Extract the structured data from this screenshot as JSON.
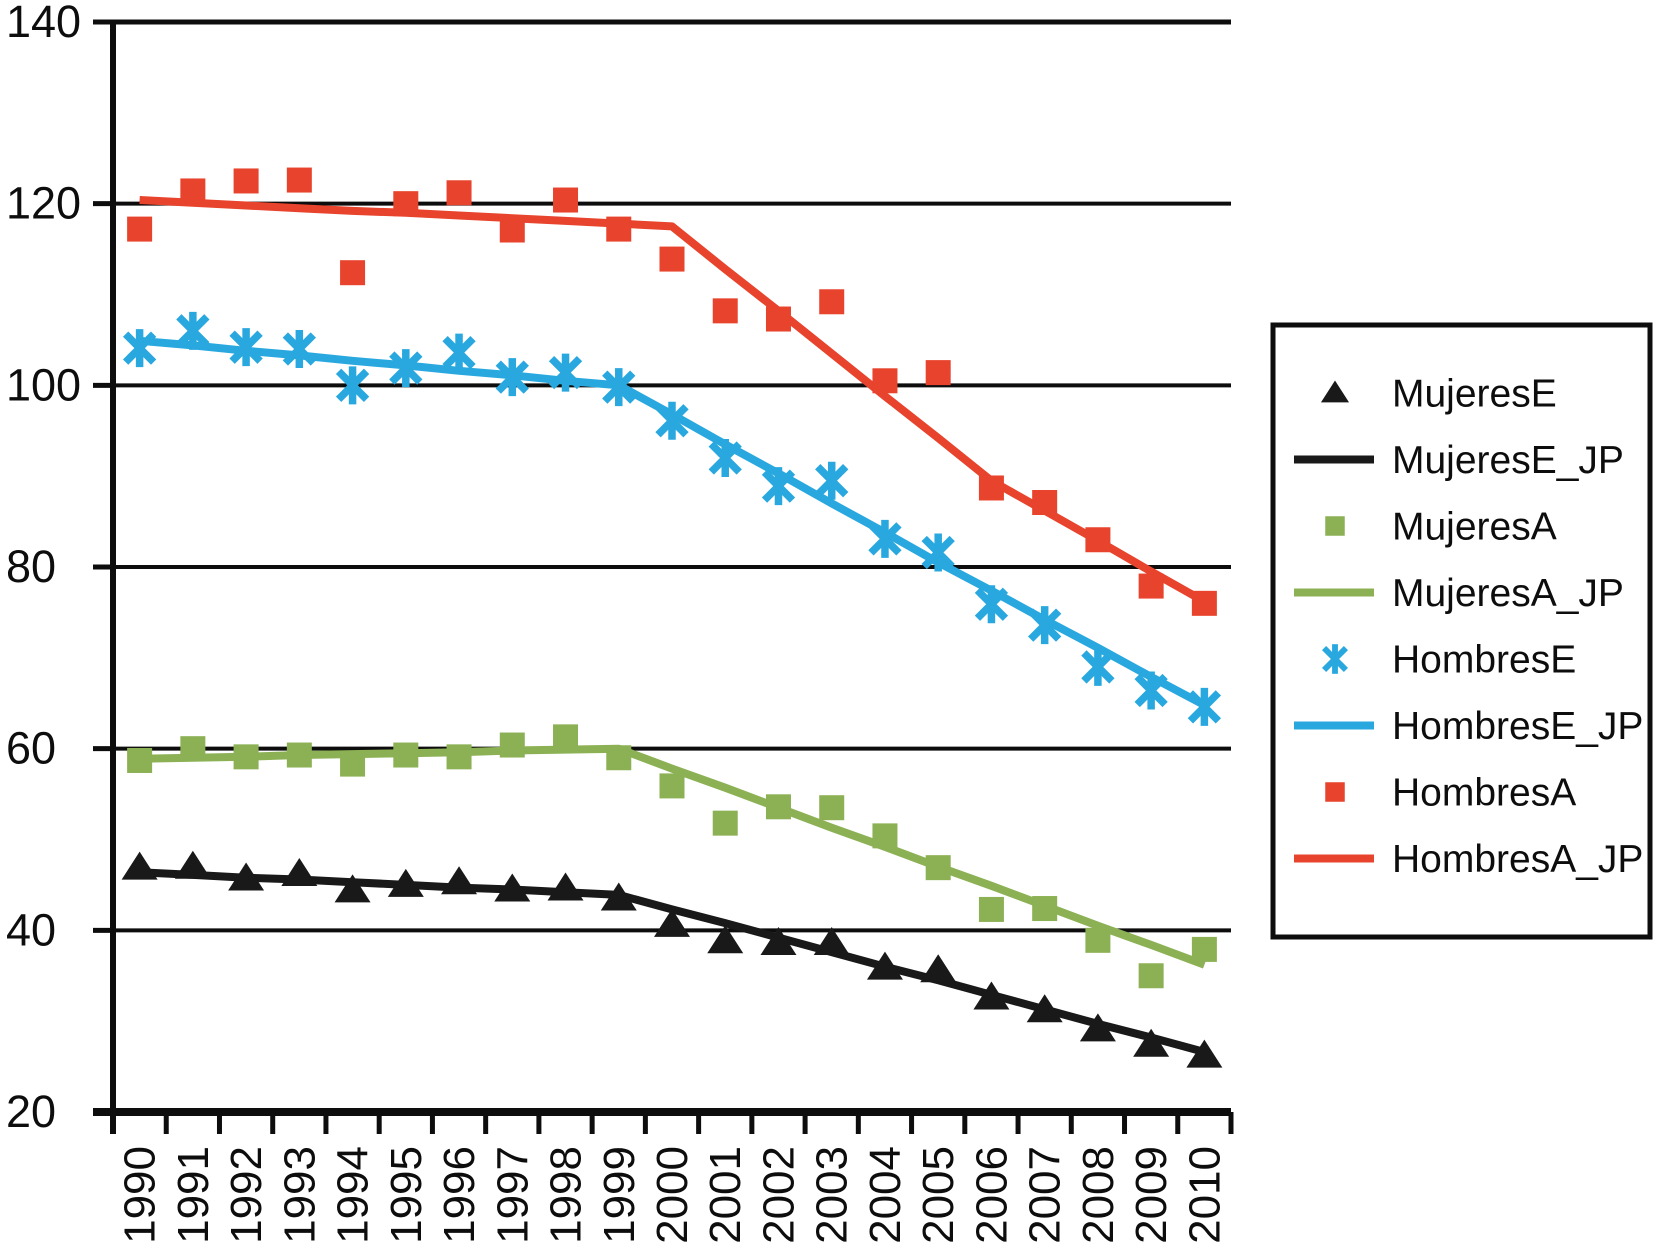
{
  "chart_data": {
    "type": "scatter",
    "subtype": "joinpoint-regression",
    "title": "",
    "xlabel": "",
    "ylabel": "",
    "x": [
      1990,
      1991,
      1992,
      1993,
      1994,
      1995,
      1996,
      1997,
      1998,
      1999,
      2000,
      2001,
      2002,
      2003,
      2004,
      2005,
      2006,
      2007,
      2008,
      2009,
      2010
    ],
    "x_tick_labels": [
      "1990",
      "1991",
      "1992",
      "1993",
      "1994",
      "1995",
      "1996",
      "1997",
      "1998",
      "1999",
      "2000",
      "2001",
      "2002",
      "2003",
      "2004",
      "2005",
      "2006",
      "2007",
      "2008",
      "2009",
      "2010"
    ],
    "y_ticks": [
      140,
      120,
      100,
      80,
      60,
      40,
      20
    ],
    "ylim": [
      20,
      140
    ],
    "xlim": [
      1990,
      2010
    ],
    "grid": "horizontal",
    "legend_position": "right",
    "colors": {
      "black": "#191919",
      "green": "#8cb155",
      "blue": "#29a8df",
      "red": "#e8432c",
      "axis": "#0d0d0d",
      "background": "#ffffff"
    },
    "series": [
      {
        "name": "MujeresE",
        "kind": "marker",
        "marker": "triangle",
        "color": "#191919",
        "values": [
          46.9,
          47.0,
          45.7,
          46.2,
          44.4,
          45.0,
          45.3,
          44.5,
          44.6,
          43.5,
          40.6,
          38.8,
          38.6,
          38.6,
          35.9,
          35.6,
          32.6,
          31.2,
          29.1,
          27.4,
          26.2
        ]
      },
      {
        "name": "MujeresE_JP",
        "kind": "line",
        "color": "#191919",
        "values": [
          46.4,
          46.1,
          45.8,
          45.6,
          45.3,
          45.0,
          44.7,
          44.5,
          44.2,
          43.9,
          42.3,
          40.8,
          39.2,
          37.6,
          36.0,
          34.5,
          32.9,
          31.3,
          29.7,
          28.2,
          26.6
        ]
      },
      {
        "name": "MujeresA",
        "kind": "marker",
        "marker": "square",
        "color": "#8cb155",
        "values": [
          58.7,
          60.0,
          59.1,
          59.3,
          58.3,
          59.3,
          59.1,
          60.4,
          61.3,
          59.0,
          55.9,
          51.8,
          53.6,
          53.5,
          50.4,
          46.9,
          42.3,
          42.4,
          38.9,
          35.0,
          37.9
        ]
      },
      {
        "name": "MujeresA_JP",
        "kind": "line",
        "color": "#8cb155",
        "values": [
          58.9,
          59.0,
          59.1,
          59.3,
          59.4,
          59.5,
          59.6,
          59.8,
          59.9,
          60.0,
          57.8,
          55.7,
          53.5,
          51.3,
          49.2,
          47.0,
          44.9,
          42.7,
          40.5,
          38.4,
          36.2
        ]
      },
      {
        "name": "HombresE",
        "kind": "marker",
        "marker": "asterisk",
        "color": "#29a8df",
        "values": [
          104.1,
          106.0,
          104.2,
          104.0,
          100.0,
          101.9,
          103.6,
          100.9,
          101.4,
          99.8,
          96.1,
          92.0,
          88.9,
          89.5,
          83.1,
          81.6,
          75.9,
          73.6,
          69.0,
          66.4,
          64.6
        ]
      },
      {
        "name": "HombresE_JP",
        "kind": "line",
        "color": "#29a8df",
        "values": [
          104.9,
          104.4,
          103.8,
          103.3,
          102.7,
          102.2,
          101.6,
          101.1,
          100.5,
          100.0,
          96.8,
          93.5,
          90.3,
          87.0,
          83.8,
          80.5,
          77.4,
          74.2,
          71.1,
          67.9,
          64.8
        ]
      },
      {
        "name": "HombresA",
        "kind": "marker",
        "marker": "square",
        "color": "#e8432c",
        "values": [
          117.2,
          121.4,
          122.5,
          122.6,
          112.4,
          120.0,
          121.2,
          117.1,
          120.4,
          117.2,
          113.9,
          108.2,
          107.3,
          109.2,
          100.5,
          101.4,
          88.7,
          87.1,
          83.0,
          77.9,
          76.0
        ]
      },
      {
        "name": "HombresA_JP",
        "kind": "line",
        "color": "#e8432c",
        "values": [
          120.4,
          120.1,
          119.8,
          119.5,
          119.2,
          119.0,
          118.7,
          118.4,
          118.1,
          117.8,
          117.5,
          112.8,
          108.2,
          103.5,
          98.8,
          94.2,
          89.5,
          86.2,
          82.9,
          79.5,
          76.2
        ]
      }
    ],
    "legend": [
      "MujeresE",
      "MujeresE_JP",
      "MujeresA",
      "MujeresA_JP",
      "HombresE",
      "HombresE_JP",
      "HombresA",
      "HombresA_JP"
    ]
  }
}
